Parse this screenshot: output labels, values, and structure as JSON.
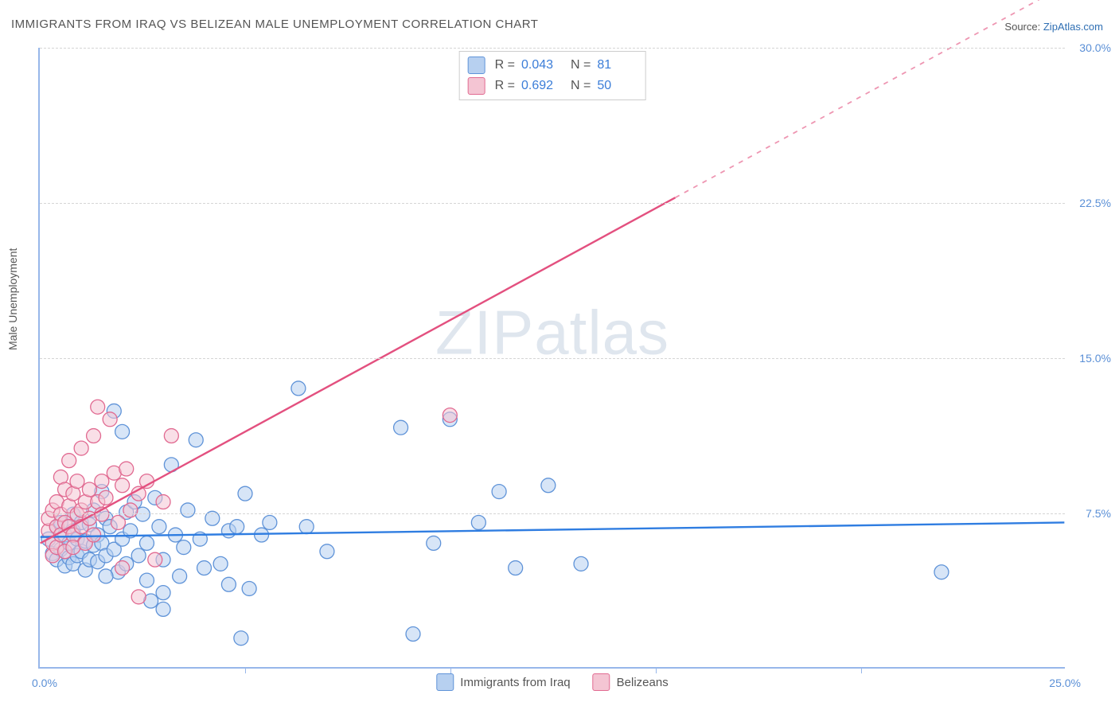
{
  "title": "IMMIGRANTS FROM IRAQ VS BELIZEAN MALE UNEMPLOYMENT CORRELATION CHART",
  "source_label": "Source:",
  "source_name": "ZipAtlas.com",
  "y_axis_label": "Male Unemployment",
  "watermark": {
    "part1": "ZIP",
    "part2": "atlas"
  },
  "chart": {
    "type": "scatter",
    "xlim": [
      0.0,
      25.0
    ],
    "ylim": [
      0.0,
      30.0
    ],
    "y_ticks": [
      7.5,
      15.0,
      22.5,
      30.0
    ],
    "y_tick_labels": [
      "7.5%",
      "15.0%",
      "22.5%",
      "30.0%"
    ],
    "x_tick_step": 5.0,
    "x_origin_label": "0.0%",
    "x_max_label": "25.0%",
    "background_color": "#ffffff",
    "grid_color": "#d5d5d5",
    "axis_color": "#97b7ea",
    "marker_radius": 9,
    "marker_stroke_width": 1.3,
    "line_width": 2.4,
    "series": [
      {
        "name": "Immigrants from Iraq",
        "fill": "#b7d0f0",
        "stroke": "#5f93d8",
        "fill_opacity": 0.55,
        "r_value": "0.043",
        "n_value": "81",
        "trend": {
          "start": [
            0.0,
            6.3
          ],
          "end": [
            25.0,
            7.0
          ],
          "color": "#2f7de1",
          "dash_after_x": null
        },
        "points": [
          [
            0.2,
            6.2
          ],
          [
            0.3,
            5.5
          ],
          [
            0.4,
            6.8
          ],
          [
            0.4,
            5.2
          ],
          [
            0.5,
            7.0
          ],
          [
            0.5,
            5.7
          ],
          [
            0.6,
            6.4
          ],
          [
            0.6,
            4.9
          ],
          [
            0.7,
            6.0
          ],
          [
            0.7,
            5.3
          ],
          [
            0.8,
            7.4
          ],
          [
            0.8,
            6.6
          ],
          [
            0.8,
            5.0
          ],
          [
            0.9,
            6.2
          ],
          [
            0.9,
            5.4
          ],
          [
            1.0,
            7.0
          ],
          [
            1.0,
            5.6
          ],
          [
            1.1,
            6.1
          ],
          [
            1.1,
            4.7
          ],
          [
            1.2,
            6.9
          ],
          [
            1.2,
            5.2
          ],
          [
            1.3,
            7.6
          ],
          [
            1.3,
            5.9
          ],
          [
            1.4,
            6.4
          ],
          [
            1.4,
            5.1
          ],
          [
            1.5,
            8.5
          ],
          [
            1.5,
            6.0
          ],
          [
            1.6,
            7.2
          ],
          [
            1.6,
            5.4
          ],
          [
            1.7,
            6.8
          ],
          [
            1.8,
            12.4
          ],
          [
            1.8,
            5.7
          ],
          [
            1.9,
            4.6
          ],
          [
            2.0,
            11.4
          ],
          [
            2.0,
            6.2
          ],
          [
            2.1,
            7.5
          ],
          [
            2.1,
            5.0
          ],
          [
            2.2,
            6.6
          ],
          [
            2.3,
            8.0
          ],
          [
            2.4,
            5.4
          ],
          [
            2.5,
            7.4
          ],
          [
            2.6,
            6.0
          ],
          [
            2.7,
            3.2
          ],
          [
            2.8,
            8.2
          ],
          [
            2.9,
            6.8
          ],
          [
            3.0,
            5.2
          ],
          [
            3.0,
            2.8
          ],
          [
            3.2,
            9.8
          ],
          [
            3.3,
            6.4
          ],
          [
            3.4,
            4.4
          ],
          [
            3.5,
            5.8
          ],
          [
            3.6,
            7.6
          ],
          [
            3.8,
            11.0
          ],
          [
            3.9,
            6.2
          ],
          [
            4.0,
            4.8
          ],
          [
            4.2,
            7.2
          ],
          [
            4.4,
            5.0
          ],
          [
            4.6,
            6.6
          ],
          [
            4.6,
            4.0
          ],
          [
            4.8,
            6.8
          ],
          [
            5.0,
            8.4
          ],
          [
            5.1,
            3.8
          ],
          [
            5.4,
            6.4
          ],
          [
            5.6,
            7.0
          ],
          [
            6.3,
            13.5
          ],
          [
            6.5,
            6.8
          ],
          [
            7.0,
            5.6
          ],
          [
            8.8,
            11.6
          ],
          [
            9.1,
            1.6
          ],
          [
            9.6,
            6.0
          ],
          [
            10.0,
            12.0
          ],
          [
            10.7,
            7.0
          ],
          [
            11.2,
            8.5
          ],
          [
            11.6,
            4.8
          ],
          [
            12.4,
            8.8
          ],
          [
            13.2,
            5.0
          ],
          [
            22.0,
            4.6
          ],
          [
            4.9,
            1.4
          ],
          [
            3.0,
            3.6
          ],
          [
            2.6,
            4.2
          ],
          [
            1.6,
            4.4
          ]
        ]
      },
      {
        "name": "Belizeans",
        "fill": "#f4c5d3",
        "stroke": "#e16a91",
        "fill_opacity": 0.55,
        "r_value": "0.692",
        "n_value": "50",
        "trend": {
          "start": [
            0.0,
            6.0
          ],
          "end": [
            25.0,
            33.0
          ],
          "color": "#e3507f",
          "dash_after_x": 15.5
        },
        "points": [
          [
            0.2,
            6.6
          ],
          [
            0.2,
            7.2
          ],
          [
            0.3,
            6.0
          ],
          [
            0.3,
            7.6
          ],
          [
            0.3,
            5.4
          ],
          [
            0.4,
            8.0
          ],
          [
            0.4,
            6.8
          ],
          [
            0.4,
            5.8
          ],
          [
            0.5,
            7.4
          ],
          [
            0.5,
            6.4
          ],
          [
            0.5,
            9.2
          ],
          [
            0.6,
            7.0
          ],
          [
            0.6,
            5.6
          ],
          [
            0.6,
            8.6
          ],
          [
            0.7,
            6.8
          ],
          [
            0.7,
            10.0
          ],
          [
            0.7,
            7.8
          ],
          [
            0.8,
            6.4
          ],
          [
            0.8,
            8.4
          ],
          [
            0.8,
            5.8
          ],
          [
            0.9,
            7.4
          ],
          [
            0.9,
            9.0
          ],
          [
            1.0,
            6.8
          ],
          [
            1.0,
            10.6
          ],
          [
            1.0,
            7.6
          ],
          [
            1.1,
            8.0
          ],
          [
            1.1,
            6.0
          ],
          [
            1.2,
            8.6
          ],
          [
            1.2,
            7.2
          ],
          [
            1.3,
            11.2
          ],
          [
            1.4,
            12.6
          ],
          [
            1.4,
            8.0
          ],
          [
            1.5,
            9.0
          ],
          [
            1.5,
            7.4
          ],
          [
            1.6,
            8.2
          ],
          [
            1.7,
            12.0
          ],
          [
            1.8,
            9.4
          ],
          [
            1.9,
            7.0
          ],
          [
            2.0,
            8.8
          ],
          [
            2.0,
            4.8
          ],
          [
            2.1,
            9.6
          ],
          [
            2.2,
            7.6
          ],
          [
            2.4,
            8.4
          ],
          [
            2.4,
            3.4
          ],
          [
            2.6,
            9.0
          ],
          [
            2.8,
            5.2
          ],
          [
            3.0,
            8.0
          ],
          [
            3.2,
            11.2
          ],
          [
            10.0,
            12.2
          ],
          [
            1.3,
            6.4
          ]
        ]
      }
    ]
  },
  "legend_bottom": [
    {
      "label": "Immigrants from Iraq",
      "fill": "#b7d0f0",
      "stroke": "#5f93d8"
    },
    {
      "label": "Belizeans",
      "fill": "#f4c5d3",
      "stroke": "#e16a91"
    }
  ]
}
